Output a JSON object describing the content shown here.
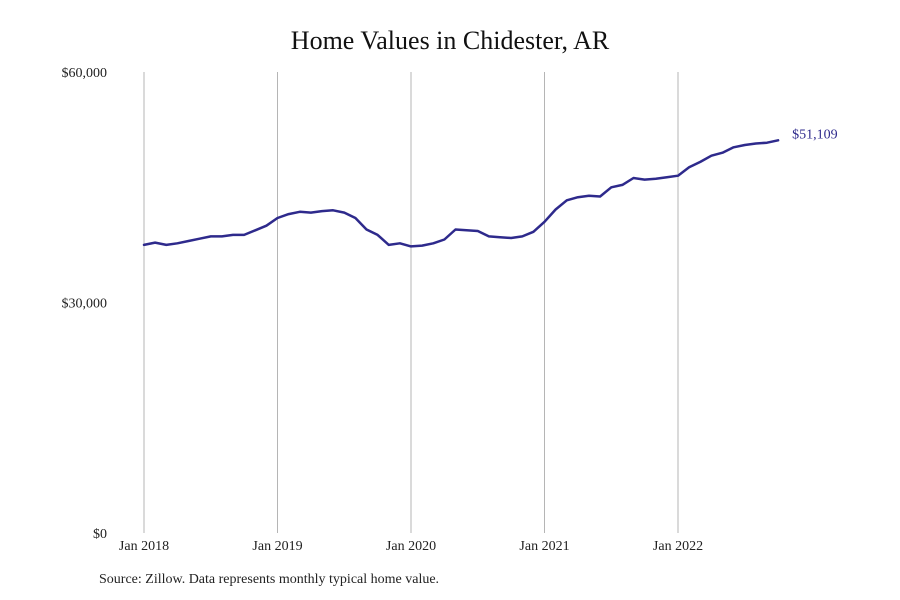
{
  "chart_data": {
    "type": "line",
    "title": "Home Values in Chidester, AR",
    "xlabel": "",
    "ylabel": "",
    "ylim": [
      0,
      60000
    ],
    "y_ticks": [
      0,
      30000,
      60000
    ],
    "y_tick_labels": [
      "$0",
      "$30,000",
      "$60,000"
    ],
    "x_ticks": [
      "Jan 2018",
      "Jan 2019",
      "Jan 2020",
      "Jan 2021",
      "Jan 2022"
    ],
    "grid": "vertical lines at x ticks",
    "line_color": "#2e2a8c",
    "end_label": "$51,109",
    "source": "Source: Zillow. Data represents monthly typical home value.",
    "series": [
      {
        "x": [
          "2018-01",
          "2018-02",
          "2018-03",
          "2018-04",
          "2018-05",
          "2018-06",
          "2018-07",
          "2018-08",
          "2018-09",
          "2018-10",
          "2018-11",
          "2018-12",
          "2019-01",
          "2019-02",
          "2019-03",
          "2019-04",
          "2019-05",
          "2019-06",
          "2019-07",
          "2019-08",
          "2019-09",
          "2019-10",
          "2019-11",
          "2019-12",
          "2020-01",
          "2020-02",
          "2020-03",
          "2020-04",
          "2020-05",
          "2020-06",
          "2020-07",
          "2020-08",
          "2020-09",
          "2020-10",
          "2020-11",
          "2020-12",
          "2021-01",
          "2021-02",
          "2021-03",
          "2021-04",
          "2021-05",
          "2021-06",
          "2021-07",
          "2021-08",
          "2021-09",
          "2021-10",
          "2021-11",
          "2021-12",
          "2022-01",
          "2022-02",
          "2022-03",
          "2022-04",
          "2022-05",
          "2022-06",
          "2022-07",
          "2022-08",
          "2022-09",
          "2022-10"
        ],
        "values": [
          37500,
          37800,
          37500,
          37700,
          38000,
          38300,
          38600,
          38600,
          38800,
          38800,
          39400,
          40000,
          41000,
          41500,
          41800,
          41700,
          41900,
          42000,
          41700,
          41000,
          39500,
          38800,
          37500,
          37700,
          37300,
          37400,
          37700,
          38200,
          39500,
          39400,
          39300,
          38600,
          38500,
          38400,
          38600,
          39200,
          40500,
          42100,
          43300,
          43700,
          43900,
          43800,
          45000,
          45300,
          46200,
          46000,
          46100,
          46300,
          46500,
          47600,
          48300,
          49100,
          49500,
          50200,
          50500,
          50700,
          50800,
          51109
        ]
      }
    ]
  }
}
